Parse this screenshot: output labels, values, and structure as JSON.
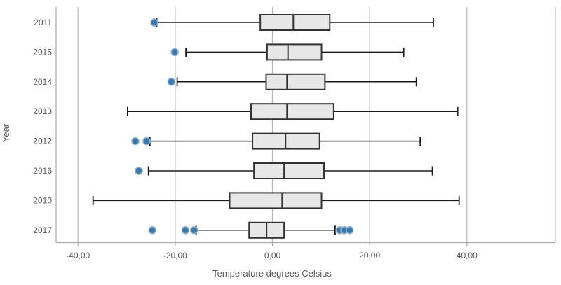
{
  "chart_data": {
    "type": "boxplot",
    "orientation": "horizontal",
    "title": "",
    "xlabel": "Temperature degrees Celsius",
    "ylabel": "Year",
    "categories": [
      "2011",
      "2015",
      "2014",
      "2013",
      "2012",
      "2016",
      "2010",
      "2017"
    ],
    "x_ticks": [
      {
        "value": -40,
        "label": "-40,00"
      },
      {
        "value": -20,
        "label": "-20,00"
      },
      {
        "value": 0,
        "label": "0,00"
      },
      {
        "value": 20,
        "label": "20,00"
      },
      {
        "value": 40,
        "label": "40,00"
      }
    ],
    "xlim": [
      -44.5,
      58.2
    ],
    "grid": true,
    "legend": "none",
    "series": [
      {
        "year": "2011",
        "whisker_low": -23.8,
        "q1": -2.5,
        "median": 4.3,
        "q3": 11.8,
        "whisker_high": 33.1,
        "outliers": [
          -24.3
        ]
      },
      {
        "year": "2015",
        "whisker_low": -17.8,
        "q1": -1.1,
        "median": 3.2,
        "q3": 10.1,
        "whisker_high": 27.0,
        "outliers": [
          -20.1
        ]
      },
      {
        "year": "2014",
        "whisker_low": -19.6,
        "q1": -1.3,
        "median": 3.0,
        "q3": 10.8,
        "whisker_high": 29.6,
        "outliers": [
          -20.8
        ]
      },
      {
        "year": "2013",
        "whisker_low": -29.8,
        "q1": -4.4,
        "median": 3.0,
        "q3": 12.6,
        "whisker_high": 38.1,
        "outliers": []
      },
      {
        "year": "2012",
        "whisker_low": -25.2,
        "q1": -4.1,
        "median": 2.7,
        "q3": 9.7,
        "whisker_high": 30.4,
        "outliers": [
          -28.2,
          -25.9
        ]
      },
      {
        "year": "2016",
        "whisker_low": -25.5,
        "q1": -3.8,
        "median": 2.4,
        "q3": 10.6,
        "whisker_high": 32.9,
        "outliers": [
          -27.5
        ]
      },
      {
        "year": "2010",
        "whisker_low": -36.9,
        "q1": -8.8,
        "median": 2.0,
        "q3": 10.1,
        "whisker_high": 38.4,
        "outliers": []
      },
      {
        "year": "2017",
        "whisker_low": -15.7,
        "q1": -4.8,
        "median": -1.2,
        "q3": 2.4,
        "whisker_high": 12.9,
        "outliers": [
          -24.7,
          -17.9,
          -16.1,
          13.8,
          14.8,
          15.9
        ]
      }
    ],
    "colors": {
      "box_fill": "#e7e7e7",
      "box_border": "#333333",
      "median": "#333333",
      "whisker": "#1a1a1a",
      "outlier_fill": "#3b78a9",
      "outlier_halo": "#8fb2d1",
      "gridline": "#b7b7b7",
      "axis_line": "#a9a9a9",
      "text": "#595959"
    }
  }
}
